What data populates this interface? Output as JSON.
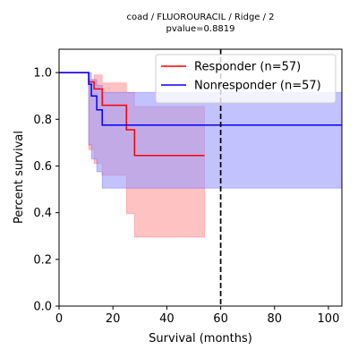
{
  "chart_data": {
    "type": "line",
    "title": "coad / FLUOROURACIL / Ridge / 2",
    "subtitle": "pvalue=0.8819",
    "xlabel": "Survival (months)",
    "ylabel": "Percent survival",
    "xlim": [
      0,
      105
    ],
    "ylim": [
      0,
      1.1
    ],
    "xticks": [
      0,
      20,
      40,
      60,
      80,
      100
    ],
    "xtick_labels": [
      "0",
      "20",
      "40",
      "60",
      "80",
      "100"
    ],
    "yticks": [
      0.0,
      0.2,
      0.4,
      0.6,
      0.8,
      1.0
    ],
    "ytick_labels": [
      "0.0",
      "0.2",
      "0.4",
      "0.6",
      "0.8",
      "1.0"
    ],
    "grid": false,
    "legend_position": "top-right",
    "reference_line": {
      "x": 60,
      "style": "dashed",
      "color": "#000000"
    },
    "series": [
      {
        "name": "Responder (n=57)",
        "color": "#ff0000",
        "band_color": "#ff9999",
        "steps": [
          [
            0,
            1.0
          ],
          [
            11,
            1.0
          ],
          [
            11,
            0.96
          ],
          [
            13,
            0.96
          ],
          [
            13,
            0.93
          ],
          [
            16,
            0.93
          ],
          [
            16,
            0.86
          ],
          [
            25,
            0.86
          ],
          [
            25,
            0.755
          ],
          [
            28,
            0.755
          ],
          [
            28,
            0.645
          ],
          [
            54,
            0.645
          ]
        ],
        "band": [
          [
            0,
            1.0,
            1.0
          ],
          [
            11,
            0.97,
            0.67
          ],
          [
            13,
            0.99,
            0.61
          ],
          [
            16,
            0.955,
            0.56
          ],
          [
            25,
            0.915,
            0.395
          ],
          [
            28,
            0.855,
            0.295
          ],
          [
            54,
            0.855,
            0.295
          ]
        ]
      },
      {
        "name": "Nonresponder (n=57)",
        "color": "#0000ff",
        "band_color": "#9999ff",
        "steps": [
          [
            0,
            1.0
          ],
          [
            11,
            1.0
          ],
          [
            11,
            0.95
          ],
          [
            12,
            0.95
          ],
          [
            12,
            0.9
          ],
          [
            14,
            0.9
          ],
          [
            14,
            0.84
          ],
          [
            16,
            0.84
          ],
          [
            16,
            0.775
          ],
          [
            105,
            0.775
          ]
        ],
        "band": [
          [
            0,
            1.0,
            1.0
          ],
          [
            11,
            1.0,
            0.69
          ],
          [
            12,
            0.97,
            0.63
          ],
          [
            14,
            0.945,
            0.575
          ],
          [
            16,
            0.915,
            0.505
          ],
          [
            105,
            0.915,
            0.505
          ]
        ]
      }
    ]
  }
}
